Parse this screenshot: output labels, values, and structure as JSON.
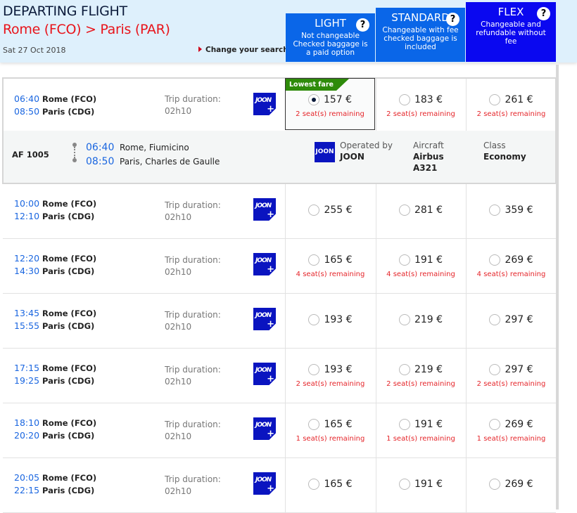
{
  "header": {
    "title": "DEPARTING FLIGHT",
    "origin_city": "Rome",
    "origin_code": "(FCO)",
    "sep": ">",
    "dest_city": "Paris",
    "dest_code": "(PAR)",
    "date": "Sat 27 Oct 2018",
    "change_search": "Change your search"
  },
  "fares": [
    {
      "name": "LIGHT",
      "desc": "Not changeable Checked baggage is a paid option",
      "help": "?",
      "color": "#0a66e8"
    },
    {
      "name": "STANDARD",
      "desc": "Changeable with fee checked baggage is included",
      "help": "?",
      "color": "#0a66e8"
    },
    {
      "name": "FLEX",
      "desc": "Changeable and refundable without fee",
      "help": "?",
      "color": "#0a08f0"
    }
  ],
  "labels": {
    "trip_duration": "Trip duration:",
    "lowest_fare": "Lowest fare",
    "operated_by": "Operated by",
    "aircraft": "Aircraft",
    "class": "Class",
    "logo_text": "JOON",
    "logo_plus": "+"
  },
  "detail": {
    "flight_no": "AF 1005",
    "dep_time": "06:40",
    "dep_airport": "Rome, Fiumicino",
    "arr_time": "08:50",
    "arr_airport": "Paris, Charles de Gaulle",
    "operator": "JOON",
    "aircraft": "Airbus A321",
    "class": "Economy"
  },
  "flights": [
    {
      "dep": "06:40",
      "dep_place": "Rome (FCO)",
      "arr": "08:50",
      "arr_place": "Paris (CDG)",
      "duration": "02h10",
      "prices": [
        "157 €",
        "183 €",
        "261 €"
      ],
      "seats": "2 seat(s) remaining",
      "selected": 0
    },
    {
      "dep": "10:00",
      "dep_place": "Rome (FCO)",
      "arr": "12:10",
      "arr_place": "Paris (CDG)",
      "duration": "02h10",
      "prices": [
        "255 €",
        "281 €",
        "359 €"
      ],
      "seats": ""
    },
    {
      "dep": "12:20",
      "dep_place": "Rome (FCO)",
      "arr": "14:30",
      "arr_place": "Paris (CDG)",
      "duration": "02h10",
      "prices": [
        "165 €",
        "191 €",
        "269 €"
      ],
      "seats": "4 seat(s) remaining"
    },
    {
      "dep": "13:45",
      "dep_place": "Rome (FCO)",
      "arr": "15:55",
      "arr_place": "Paris (CDG)",
      "duration": "02h10",
      "prices": [
        "193 €",
        "219 €",
        "297 €"
      ],
      "seats": ""
    },
    {
      "dep": "17:15",
      "dep_place": "Rome (FCO)",
      "arr": "19:25",
      "arr_place": "Paris (CDG)",
      "duration": "02h10",
      "prices": [
        "193 €",
        "219 €",
        "297 €"
      ],
      "seats": "2 seat(s) remaining"
    },
    {
      "dep": "18:10",
      "dep_place": "Rome (FCO)",
      "arr": "20:20",
      "arr_place": "Paris (CDG)",
      "duration": "02h10",
      "prices": [
        "165 €",
        "191 €",
        "269 €"
      ],
      "seats": "1 seat(s) remaining"
    },
    {
      "dep": "20:05",
      "dep_place": "Rome (FCO)",
      "arr": "22:15",
      "arr_place": "Paris (CDG)",
      "duration": "02h10",
      "prices": [
        "165 €",
        "191 €",
        "269 €"
      ],
      "seats": ""
    }
  ]
}
